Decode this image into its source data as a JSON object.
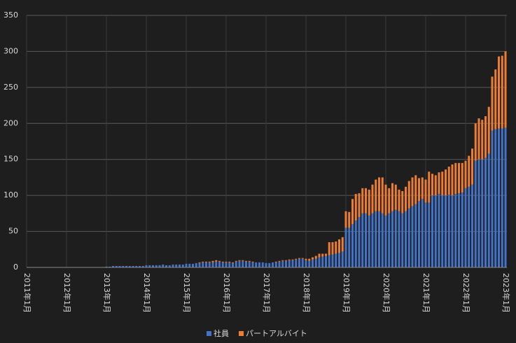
{
  "chart_data": {
    "type": "bar",
    "stacked": true,
    "grid": true,
    "legend": "bottom",
    "ylim": [
      0,
      350
    ],
    "yticks": [
      0,
      50,
      100,
      150,
      200,
      250,
      300,
      350
    ],
    "categories": [
      "2011年1月",
      null,
      null,
      null,
      null,
      null,
      null,
      null,
      null,
      null,
      null,
      null,
      "2012年1月",
      null,
      null,
      null,
      null,
      null,
      null,
      null,
      null,
      null,
      null,
      null,
      "2013年1月",
      null,
      null,
      null,
      null,
      null,
      null,
      null,
      null,
      null,
      null,
      null,
      "2014年1月",
      null,
      null,
      null,
      null,
      null,
      null,
      null,
      null,
      null,
      null,
      null,
      "2015年1月",
      null,
      null,
      null,
      null,
      null,
      null,
      null,
      null,
      null,
      null,
      null,
      "2016年1月",
      null,
      null,
      null,
      null,
      null,
      null,
      null,
      null,
      null,
      null,
      null,
      "2017年1月",
      null,
      null,
      null,
      null,
      null,
      null,
      null,
      null,
      null,
      null,
      null,
      "2018年1月",
      null,
      null,
      null,
      null,
      null,
      null,
      null,
      null,
      null,
      null,
      null,
      "2019年1月",
      null,
      null,
      null,
      null,
      null,
      null,
      null,
      null,
      null,
      null,
      null,
      "2020年1月",
      null,
      null,
      null,
      null,
      null,
      null,
      null,
      null,
      null,
      null,
      null,
      "2021年1月",
      null,
      null,
      null,
      null,
      null,
      null,
      null,
      null,
      null,
      null,
      null,
      "2022年1月",
      null,
      null,
      null,
      null,
      null,
      null,
      null,
      null,
      null,
      null,
      null,
      "2023年1月"
    ],
    "series": [
      {
        "name": "社員",
        "color": "#4472c4",
        "values": [
          0,
          0,
          0,
          0,
          0,
          0,
          0,
          0,
          0,
          0,
          0,
          0,
          0,
          0,
          0,
          0,
          0,
          0,
          0,
          0,
          0,
          0,
          0,
          0,
          1,
          1,
          2,
          2,
          2,
          2,
          2,
          2,
          2,
          2,
          2,
          2,
          3,
          3,
          3,
          3,
          3,
          4,
          3,
          3,
          4,
          4,
          4,
          4,
          5,
          5,
          5,
          6,
          6,
          7,
          7,
          7,
          7,
          8,
          8,
          7,
          7,
          7,
          6,
          8,
          9,
          9,
          8,
          8,
          7,
          7,
          7,
          7,
          6,
          6,
          7,
          7,
          8,
          9,
          9,
          10,
          10,
          11,
          12,
          12,
          10,
          9,
          11,
          12,
          14,
          15,
          16,
          17,
          18,
          19,
          20,
          22,
          55,
          55,
          60,
          65,
          70,
          75,
          75,
          72,
          75,
          78,
          78,
          75,
          72,
          75,
          78,
          80,
          78,
          75,
          78,
          82,
          85,
          88,
          92,
          95,
          90,
          90,
          100,
          100,
          102,
          100,
          100,
          101,
          100,
          102,
          103,
          104,
          110,
          112,
          115,
          148,
          150,
          150,
          152,
          158,
          190,
          192,
          193,
          193,
          194
        ]
      },
      {
        "name": "パートアルバイト",
        "color": "#ed7d31",
        "values": [
          0,
          0,
          0,
          0,
          0,
          0,
          0,
          0,
          0,
          0,
          0,
          0,
          0,
          0,
          0,
          0,
          0,
          0,
          0,
          0,
          0,
          0,
          0,
          0,
          0,
          0,
          0,
          0,
          0,
          0,
          0,
          0,
          0,
          0,
          0,
          0,
          0,
          0,
          0,
          0,
          0,
          0,
          0,
          0,
          0,
          0,
          0,
          0,
          0,
          0,
          0,
          0,
          1,
          1,
          1,
          1,
          2,
          2,
          1,
          1,
          1,
          1,
          1,
          1,
          1,
          1,
          1,
          1,
          1,
          0,
          0,
          0,
          0,
          0,
          0,
          1,
          1,
          1,
          1,
          1,
          1,
          1,
          1,
          1,
          2,
          3,
          3,
          4,
          5,
          4,
          3,
          18,
          17,
          17,
          19,
          20,
          23,
          22,
          35,
          37,
          33,
          35,
          35,
          36,
          40,
          44,
          47,
          50,
          43,
          35,
          39,
          35,
          30,
          31,
          34,
          38,
          40,
          40,
          32,
          30,
          32,
          43,
          30,
          28,
          30,
          33,
          36,
          39,
          43,
          43,
          42,
          41,
          38,
          43,
          50,
          52,
          57,
          55,
          58,
          65,
          75,
          83,
          100,
          101,
          106
        ]
      }
    ]
  }
}
